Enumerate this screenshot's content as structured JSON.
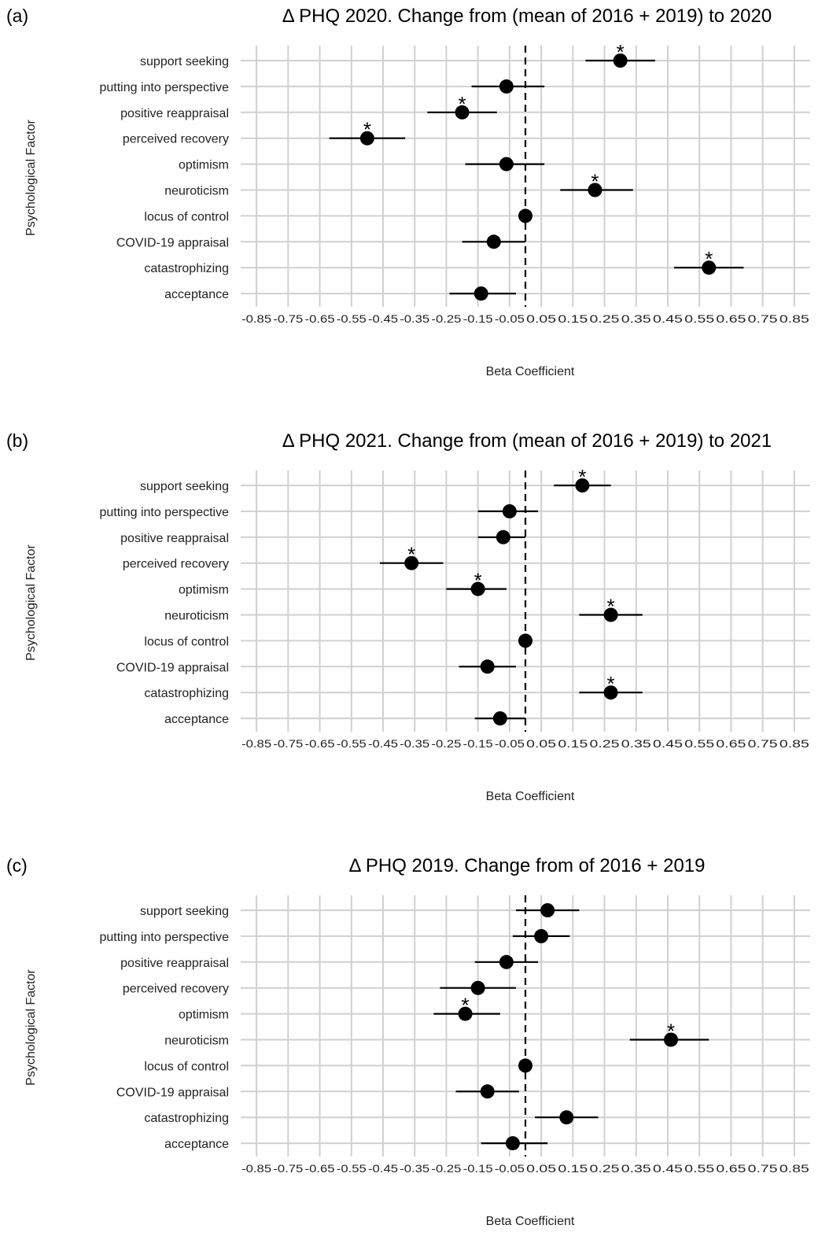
{
  "chart_data": [
    {
      "type": "forest",
      "panel_label": "(a)",
      "title": "Δ PHQ 2020. Change from (mean of 2016 + 2019) to 2020",
      "xlabel": "Beta Coefficient",
      "ylabel": "Psychological Factor",
      "xlim": [
        -0.9,
        0.9
      ],
      "xticks": [
        "-0.85",
        "-0.75",
        "-0.65",
        "-0.55",
        "-0.45",
        "-0.35",
        "-0.25",
        "-0.15",
        "-0.05",
        "0.05",
        "0.15",
        "0.25",
        "0.35",
        "0.45",
        "0.55",
        "0.65",
        "0.75",
        "0.85"
      ],
      "grid": true,
      "reference_line": 0,
      "categories": [
        "support seeking",
        "putting into perspective",
        "positive reappraisal",
        "perceived recovery",
        "optimism",
        "neuroticism",
        "locus of control",
        "COVID-19 appraisal",
        "catastrophizing",
        "acceptance"
      ],
      "estimates": [
        0.3,
        -0.06,
        -0.2,
        -0.5,
        -0.06,
        0.22,
        0.0,
        -0.1,
        0.58,
        -0.14
      ],
      "ci_lower": [
        0.19,
        -0.17,
        -0.31,
        -0.62,
        -0.19,
        0.11,
        0.0,
        -0.2,
        0.47,
        -0.24
      ],
      "ci_upper": [
        0.41,
        0.06,
        -0.09,
        -0.38,
        0.06,
        0.34,
        0.0,
        0.0,
        0.69,
        -0.03
      ],
      "significant": [
        true,
        false,
        true,
        true,
        false,
        true,
        false,
        false,
        true,
        false
      ]
    },
    {
      "type": "forest",
      "panel_label": "(b)",
      "title": "Δ PHQ 2021. Change from (mean of 2016 + 2019) to 2021",
      "xlabel": "Beta Coefficient",
      "ylabel": "Psychological Factor",
      "xlim": [
        -0.9,
        0.9
      ],
      "xticks": [
        "-0.85",
        "-0.75",
        "-0.65",
        "-0.55",
        "-0.45",
        "-0.35",
        "-0.25",
        "-0.15",
        "-0.05",
        "0.05",
        "0.15",
        "0.25",
        "0.35",
        "0.45",
        "0.55",
        "0.65",
        "0.75",
        "0.85"
      ],
      "grid": true,
      "reference_line": 0,
      "categories": [
        "support seeking",
        "putting into perspective",
        "positive reappraisal",
        "perceived recovery",
        "optimism",
        "neuroticism",
        "locus of control",
        "COVID-19 appraisal",
        "catastrophizing",
        "acceptance"
      ],
      "estimates": [
        0.18,
        -0.05,
        -0.07,
        -0.36,
        -0.15,
        0.27,
        0.0,
        -0.12,
        0.27,
        -0.08
      ],
      "ci_lower": [
        0.09,
        -0.15,
        -0.15,
        -0.46,
        -0.25,
        0.17,
        0.0,
        -0.21,
        0.17,
        -0.16
      ],
      "ci_upper": [
        0.27,
        0.04,
        0.0,
        -0.26,
        -0.06,
        0.37,
        0.0,
        -0.03,
        0.37,
        0.0
      ],
      "significant": [
        true,
        false,
        false,
        true,
        true,
        true,
        false,
        false,
        true,
        false
      ]
    },
    {
      "type": "forest",
      "panel_label": "(c)",
      "title": "Δ PHQ 2019. Change from of 2016 + 2019",
      "xlabel": "Beta Coefficient",
      "ylabel": "Psychological Factor",
      "xlim": [
        -0.9,
        0.9
      ],
      "xticks": [
        "-0.85",
        "-0.75",
        "-0.65",
        "-0.55",
        "-0.45",
        "-0.35",
        "-0.25",
        "-0.15",
        "-0.05",
        "0.05",
        "0.15",
        "0.25",
        "0.35",
        "0.45",
        "0.55",
        "0.65",
        "0.75",
        "0.85"
      ],
      "grid": true,
      "reference_line": 0,
      "categories": [
        "support seeking",
        "putting into perspective",
        "positive reappraisal",
        "perceived recovery",
        "optimism",
        "neuroticism",
        "locus of control",
        "COVID-19 appraisal",
        "catastrophizing",
        "acceptance"
      ],
      "estimates": [
        0.07,
        0.05,
        -0.06,
        -0.15,
        -0.19,
        0.46,
        0.0,
        -0.12,
        0.13,
        -0.04
      ],
      "ci_lower": [
        -0.03,
        -0.04,
        -0.16,
        -0.27,
        -0.29,
        0.33,
        0.0,
        -0.22,
        0.03,
        -0.14
      ],
      "ci_upper": [
        0.17,
        0.14,
        0.04,
        -0.03,
        -0.08,
        0.58,
        0.0,
        -0.02,
        0.23,
        0.07
      ],
      "significant": [
        false,
        false,
        false,
        false,
        true,
        true,
        false,
        false,
        false,
        false
      ]
    }
  ],
  "colors": {
    "grid": "#d0d0d0",
    "point": "#000000",
    "reference": "#000000"
  },
  "significance_marker": "*"
}
